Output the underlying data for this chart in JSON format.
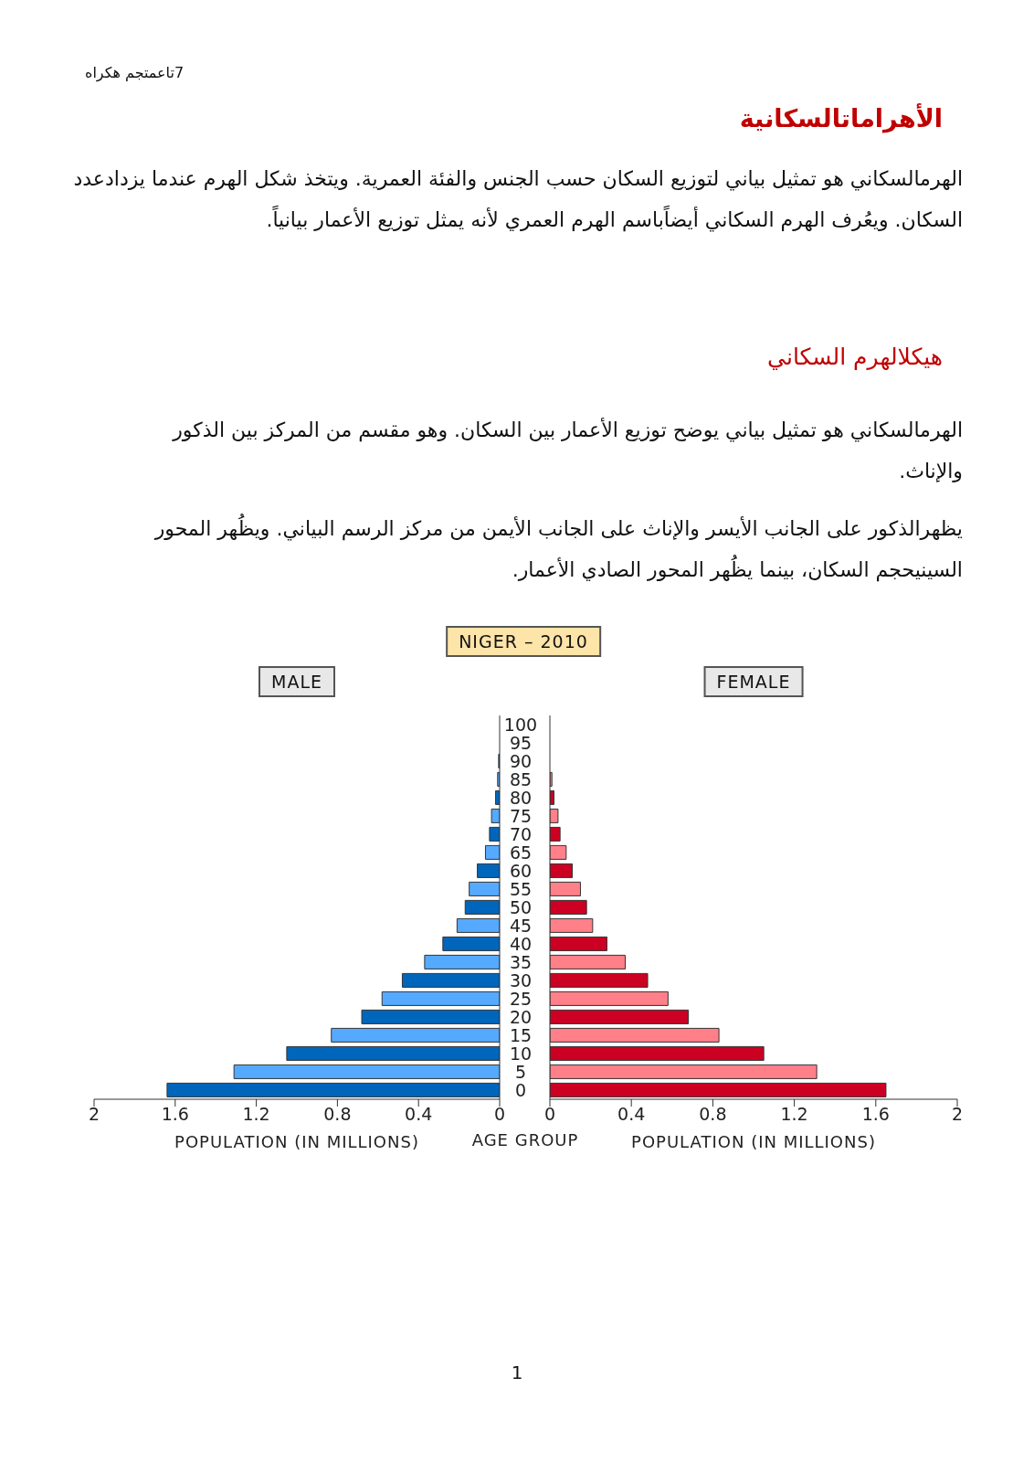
{
  "chart_data": [
    {
      "type": "bar",
      "orientation": "horizontal",
      "title": "NIGER – 2010",
      "subtitle": "MALE",
      "xlabel": "POPULATION (IN MILLIONS)",
      "categories": [
        "100",
        "95",
        "90",
        "85",
        "80",
        "75",
        "70",
        "65",
        "60",
        "55",
        "50",
        "45",
        "40",
        "35",
        "30",
        "25",
        "20",
        "15",
        "10",
        "5",
        "0"
      ],
      "values": [
        null,
        null,
        0.005,
        0.01,
        0.02,
        0.04,
        0.05,
        0.07,
        0.11,
        0.15,
        0.17,
        0.21,
        0.28,
        0.37,
        0.48,
        0.58,
        0.68,
        0.83,
        1.05,
        1.31,
        1.64
      ],
      "colors": [
        "#0066bb",
        "#55aaff",
        "#0066bb",
        "#55aaff",
        "#0066bb",
        "#55aaff",
        "#0066bb",
        "#55aaff",
        "#0066bb",
        "#55aaff",
        "#0066bb",
        "#55aaff",
        "#0066bb",
        "#55aaff",
        "#0066bb",
        "#55aaff",
        "#0066bb",
        "#55aaff",
        "#0066bb",
        "#55aaff",
        "#0066bb"
      ],
      "xlim": [
        2,
        0
      ],
      "xticks": [
        2,
        1.6,
        1.2,
        0.8,
        0.4,
        0
      ],
      "tick_labels": "x",
      "annotations": [
        "7تاعمتجم هكراه",
        "الأهراماتالسكانية",
        "الهرمالسكاني هو تمثيل بياني لتوزيع السكان حسب الجنس والفئة العمرية. ويتخذ شكل الهرم عندما يزدادعدد السكان. ويعُرف الهرم السكاني أيضاًباسم الهرم العمري لأنه يمثل توزيع الأعمار بيانياً.",
        "هيكلالهرم السكاني",
        "الهرمالسكاني هو تمثيل بياني يوضح توزيع الأعمار بين السكان. وهو مقسم من المركز بين الذكور والإناث.",
        "يظهرالذكور على الجانب الأيسر والإناث على الجانب الأيمن من مركز الرسم البياني. ويظُهر المحور السينيحجم السكان، بينما يظُهر المحور الصادي الأعمار.",
        "1"
      ]
    },
    {
      "type": "bar",
      "orientation": "horizontal",
      "subtitle": "FEMALE",
      "xlabel": "POPULATION (IN MILLIONS)",
      "ylabel": "AGE GROUP",
      "categories": [
        "100",
        "95",
        "90",
        "85",
        "80",
        "75",
        "70",
        "65",
        "60",
        "55",
        "50",
        "45",
        "40",
        "35",
        "30",
        "25",
        "20",
        "15",
        "10",
        "5",
        "0"
      ],
      "values": [
        null,
        null,
        null,
        0.01,
        0.02,
        0.04,
        0.05,
        0.08,
        0.11,
        0.15,
        0.18,
        0.21,
        0.28,
        0.37,
        0.48,
        0.58,
        0.68,
        0.83,
        1.05,
        1.31,
        1.65
      ],
      "colors": [
        "#cc0022",
        "#ff8088",
        "#cc0022",
        "#ff8088",
        "#cc0022",
        "#ff8088",
        "#cc0022",
        "#ff8088",
        "#cc0022",
        "#ff8088",
        "#cc0022",
        "#ff8088",
        "#cc0022",
        "#ff8088",
        "#cc0022",
        "#ff8088",
        "#cc0022",
        "#ff8088",
        "#cc0022",
        "#ff8088",
        "#cc0022"
      ],
      "xlim": [
        0,
        2
      ],
      "xticks": [
        0,
        0.4,
        0.8,
        1.2,
        1.6,
        2
      ]
    }
  ]
}
